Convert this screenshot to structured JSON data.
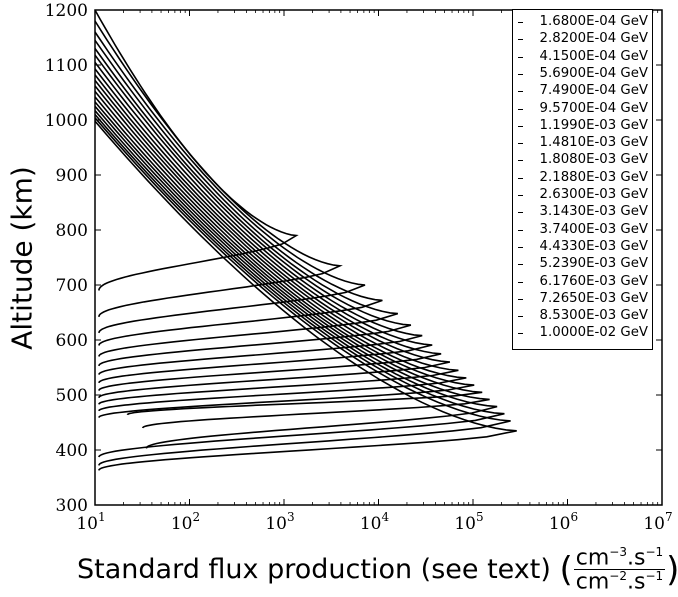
{
  "chart_data": {
    "type": "line",
    "xlabel": "Standard flux production (see text)",
    "xunit": {
      "open": "(",
      "num_text": "cm",
      "num_exp1": "−3",
      "num_dot": ".s",
      "num_exp2": "−1",
      "den_text": "cm",
      "den_exp1": "−2",
      "den_dot": ".s",
      "den_exp2": "−1",
      "close": ")"
    },
    "ylabel": "Altitude (km)",
    "xscale": "log",
    "xlim": [
      10,
      10000000
    ],
    "ylim": [
      300,
      1200
    ],
    "xticks": [
      {
        "exp": 1,
        "label_base": "10",
        "label_exp": "1"
      },
      {
        "exp": 2,
        "label_base": "10",
        "label_exp": "2"
      },
      {
        "exp": 3,
        "label_base": "10",
        "label_exp": "3"
      },
      {
        "exp": 4,
        "label_base": "10",
        "label_exp": "4"
      },
      {
        "exp": 5,
        "label_base": "10",
        "label_exp": "5"
      },
      {
        "exp": 6,
        "label_base": "10",
        "label_exp": "6"
      },
      {
        "exp": 7,
        "label_base": "10",
        "label_exp": "7"
      }
    ],
    "yticks": [
      "300",
      "400",
      "500",
      "600",
      "700",
      "800",
      "900",
      "1000",
      "1100",
      "1200"
    ],
    "legend_position": "top-right",
    "line_color": "#000000",
    "series": [
      {
        "name": "1.6800E-04 GeV",
        "peak_x": 1350,
        "peak_alt": 790,
        "top_alt": 1200,
        "bottom_x": 11,
        "bottom_alt": 690
      },
      {
        "name": "2.8200E-04 GeV",
        "peak_x": 3900,
        "peak_alt": 735,
        "top_alt": 1180,
        "bottom_x": 11,
        "bottom_alt": 642
      },
      {
        "name": "4.1500E-04 GeV",
        "peak_x": 7200,
        "peak_alt": 700,
        "top_alt": 1160,
        "bottom_x": 11,
        "bottom_alt": 613
      },
      {
        "name": "5.6900E-04 GeV",
        "peak_x": 11000,
        "peak_alt": 672,
        "top_alt": 1145,
        "bottom_x": 11,
        "bottom_alt": 590
      },
      {
        "name": "7.4900E-04 GeV",
        "peak_x": 16000,
        "peak_alt": 648,
        "top_alt": 1130,
        "bottom_x": 11,
        "bottom_alt": 570
      },
      {
        "name": "9.5700E-04 GeV",
        "peak_x": 22000,
        "peak_alt": 627,
        "top_alt": 1118,
        "bottom_x": 11,
        "bottom_alt": 553
      },
      {
        "name": "1.1990E-03 GeV",
        "peak_x": 29000,
        "peak_alt": 608,
        "top_alt": 1105,
        "bottom_x": 11,
        "bottom_alt": 537
      },
      {
        "name": "1.4810E-03 GeV",
        "peak_x": 37000,
        "peak_alt": 591,
        "top_alt": 1093,
        "bottom_x": 11,
        "bottom_alt": 522
      },
      {
        "name": "1.8080E-03 GeV",
        "peak_x": 46000,
        "peak_alt": 575,
        "top_alt": 1082,
        "bottom_x": 11,
        "bottom_alt": 508
      },
      {
        "name": "2.1880E-03 GeV",
        "peak_x": 57000,
        "peak_alt": 560,
        "top_alt": 1072,
        "bottom_x": 11,
        "bottom_alt": 495
      },
      {
        "name": "2.6300E-03 GeV",
        "peak_x": 70000,
        "peak_alt": 545,
        "top_alt": 1062,
        "bottom_x": 11,
        "bottom_alt": 483
      },
      {
        "name": "3.1430E-03 GeV",
        "peak_x": 85000,
        "peak_alt": 531,
        "top_alt": 1052,
        "bottom_x": 11,
        "bottom_alt": 471
      },
      {
        "name": "3.7400E-03 GeV",
        "peak_x": 103000,
        "peak_alt": 518,
        "top_alt": 1042,
        "bottom_x": 11,
        "bottom_alt": 459
      },
      {
        "name": "4.4330E-03 GeV",
        "peak_x": 125000,
        "peak_alt": 505,
        "top_alt": 1033,
        "bottom_x": 22,
        "bottom_alt": 464
      },
      {
        "name": "5.2390E-03 GeV",
        "peak_x": 150000,
        "peak_alt": 492,
        "top_alt": 1025,
        "bottom_x": 32,
        "bottom_alt": 440
      },
      {
        "name": "6.1760E-03 GeV",
        "peak_x": 180000,
        "peak_alt": 479,
        "top_alt": 1017,
        "bottom_x": 35,
        "bottom_alt": 403
      },
      {
        "name": "7.2650E-03 GeV",
        "peak_x": 215000,
        "peak_alt": 466,
        "top_alt": 1010,
        "bottom_x": 11,
        "bottom_alt": 387
      },
      {
        "name": "8.5300E-03 GeV",
        "peak_x": 250000,
        "peak_alt": 453,
        "top_alt": 1004,
        "bottom_x": 11,
        "bottom_alt": 372
      },
      {
        "name": "1.0000E-02 GeV",
        "peak_x": 290000,
        "peak_alt": 435,
        "top_alt": 998,
        "bottom_x": 11,
        "bottom_alt": 363
      }
    ]
  }
}
